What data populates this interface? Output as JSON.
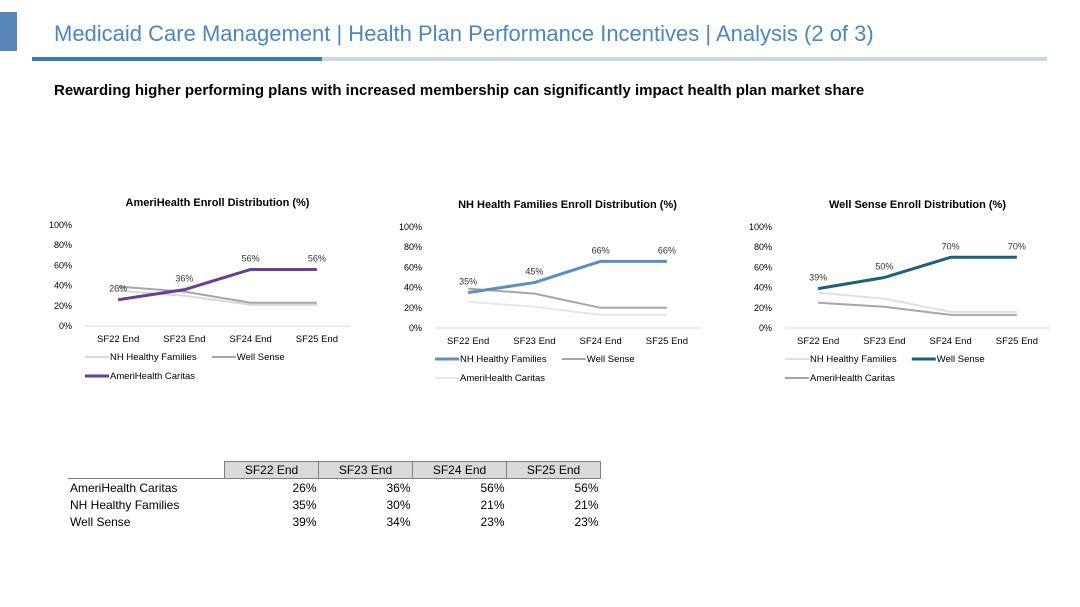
{
  "header": {
    "title": "Medicaid Care Management | Health Plan Performance Incentives | Analysis (2 of 3)",
    "subtitle": "Rewarding higher performing plans with increased membership can significantly impact health plan market share"
  },
  "colors": {
    "accent": "#5586b6",
    "title_text": "#4a86bf",
    "ameri_caritas": "#6a3d9a",
    "nh_healthy_families": "#5a8fc0",
    "well_sense": "#1d5f7c",
    "light_gray": "#d8d8d8",
    "mid_gray": "#a6a6a6"
  },
  "chart_data": [
    {
      "type": "line",
      "title": "AmeriHealth Enroll Distribution (%)",
      "categories": [
        "SF22 End",
        "SF23 End",
        "SF24 End",
        "SF25 End"
      ],
      "ylim": [
        0,
        100
      ],
      "yticks": [
        "0%",
        "20%",
        "40%",
        "60%",
        "80%",
        "100%"
      ],
      "legend_rows": [
        [
          "NH Healthy Families",
          "Well Sense"
        ],
        [
          "AmeriHealth Caritas"
        ]
      ],
      "series": [
        {
          "name": "NH Healthy Families",
          "values": [
            35,
            30,
            21,
            21
          ],
          "color": "#d8d8d8",
          "width": 2
        },
        {
          "name": "Well Sense",
          "values": [
            39,
            34,
            23,
            23
          ],
          "color": "#a6a6a6",
          "width": 2
        },
        {
          "name": "AmeriHealth Caritas",
          "values": [
            26,
            36,
            56,
            56
          ],
          "color": "#6a3d9a",
          "width": 3,
          "labels": [
            "26%",
            "36%",
            "56%",
            "56%"
          ]
        }
      ]
    },
    {
      "type": "line",
      "title": "NH Health Families Enroll Distribution (%)",
      "categories": [
        "SF22 End",
        "SF23 End",
        "SF24 End",
        "SF25 End"
      ],
      "ylim": [
        0,
        100
      ],
      "yticks": [
        "0%",
        "20%",
        "40%",
        "60%",
        "80%",
        "100%"
      ],
      "legend_rows": [
        [
          "NH Healthy Families",
          "Well Sense"
        ],
        [
          "AmeriHealth Caritas"
        ]
      ],
      "series": [
        {
          "name": "AmeriHealth Caritas",
          "values": [
            26,
            21,
            13,
            13
          ],
          "color": "#e6e6e6",
          "width": 2
        },
        {
          "name": "Well Sense",
          "values": [
            39,
            34,
            20,
            20
          ],
          "color": "#a6a6a6",
          "width": 2
        },
        {
          "name": "NH Healthy Families",
          "values": [
            35,
            45,
            66,
            66
          ],
          "color": "#5a8fc0",
          "width": 3,
          "labels": [
            "35%",
            "45%",
            "66%",
            "66%"
          ]
        }
      ]
    },
    {
      "type": "line",
      "title": "Well Sense Enroll Distribution (%)",
      "categories": [
        "SF22 End",
        "SF23 End",
        "SF24 End",
        "SF25 End"
      ],
      "ylim": [
        0,
        100
      ],
      "yticks": [
        "0%",
        "20%",
        "40%",
        "60%",
        "80%",
        "100%"
      ],
      "legend_rows": [
        [
          "NH Healthy Families",
          "Well Sense"
        ],
        [
          "AmeriHealth Caritas"
        ]
      ],
      "series": [
        {
          "name": "NH Healthy Families",
          "values": [
            35,
            29,
            16,
            16
          ],
          "color": "#e0e0e0",
          "width": 2
        },
        {
          "name": "AmeriHealth Caritas",
          "values": [
            25,
            21,
            13,
            13
          ],
          "color": "#a6a6a6",
          "width": 2
        },
        {
          "name": "Well Sense",
          "values": [
            39,
            50,
            70,
            70
          ],
          "color": "#1d5f7c",
          "width": 3,
          "labels": [
            "39%",
            "50%",
            "70%",
            "70%"
          ]
        }
      ]
    }
  ],
  "table": {
    "columns": [
      "SF22 End",
      "SF23 End",
      "SF24 End",
      "SF25 End"
    ],
    "rows": [
      {
        "label": "AmeriHealth Caritas",
        "values": [
          "26%",
          "36%",
          "56%",
          "56%"
        ]
      },
      {
        "label": "NH Healthy Families",
        "values": [
          "35%",
          "30%",
          "21%",
          "21%"
        ]
      },
      {
        "label": "Well Sense",
        "values": [
          "39%",
          "34%",
          "23%",
          "23%"
        ]
      }
    ]
  }
}
